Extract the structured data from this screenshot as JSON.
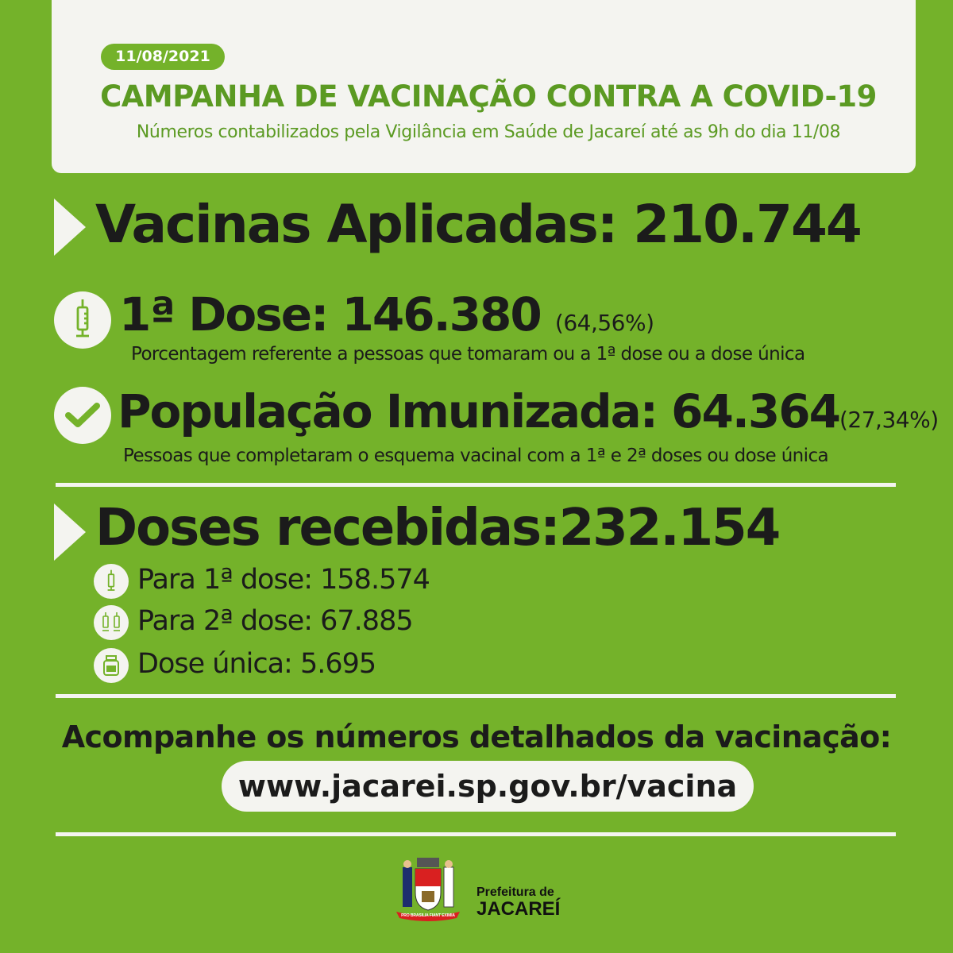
{
  "header": {
    "date": "11/08/2021",
    "title": "CAMPANHA DE VACINAÇÃO CONTRA A COVID-19",
    "subtitle": "Números contabilizados pela Vigilância em Saúde de Jacareí até as 9h do dia 11/08"
  },
  "applied": {
    "label": "Vacinas Aplicadas:",
    "value": "210.744",
    "icon": "play-triangle-icon"
  },
  "first_dose": {
    "label": "1ª Dose:",
    "value": "146.380",
    "percent": "(64,56%)",
    "note": "Porcentagem referente a pessoas que tomaram ou a 1ª dose ou a dose única",
    "icon": "syringe-icon"
  },
  "immunized": {
    "label": "População Imunizada:",
    "value": "64.364",
    "percent": "(27,34%)",
    "note": "Pessoas que completaram o esquema vacinal com a 1ª e 2ª doses ou dose única",
    "icon": "check-icon"
  },
  "received": {
    "label": "Doses recebidas:",
    "value": "232.154",
    "icon": "play-triangle-icon",
    "items": [
      {
        "text": "Para 1ª dose: 158.574",
        "icon": "syringe-icon"
      },
      {
        "text": "Para 2ª dose: 67.885",
        "icon": "two-syringes-icon"
      },
      {
        "text": "Dose única: 5.695",
        "icon": "vial-icon"
      }
    ]
  },
  "footer": {
    "cta": "Acompanhe os números detalhados da vacinação:",
    "url": "www.jacarei.sp.gov.br/vacina",
    "logo_line1": "Prefeitura de",
    "logo_line2": "JACAREÍ",
    "motto": "PRO BRASILIA FIANT EXIMIA"
  },
  "colors": {
    "background": "#74b22a",
    "header_text": "#5b9a22",
    "card": "#f4f4f0",
    "text": "#1b1b1b"
  }
}
